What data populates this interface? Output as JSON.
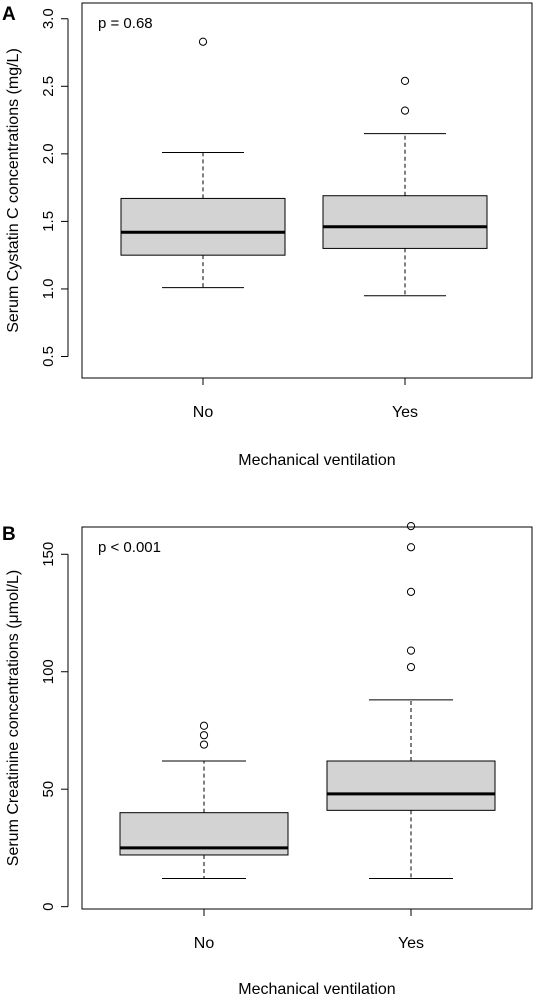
{
  "chart_data": [
    {
      "type": "boxplot",
      "panel_label": "A",
      "annotation": "p = 0.68",
      "xlabel": "Mechanical ventilation",
      "ylabel": "Serum Cystatin C concentrations (mg/L)",
      "ylim": [
        0.4,
        3.05
      ],
      "yticks": [
        "0.5",
        "1.0",
        "1.5",
        "2.0",
        "2.5",
        "3.0"
      ],
      "categories": [
        "No",
        "Yes"
      ],
      "boxes": [
        {
          "category": "No",
          "whisker_low": 1.01,
          "q1": 1.25,
          "median": 1.42,
          "q3": 1.67,
          "whisker_high": 2.01,
          "outliers": [
            2.83
          ]
        },
        {
          "category": "Yes",
          "whisker_low": 0.95,
          "q1": 1.3,
          "median": 1.46,
          "q3": 1.69,
          "whisker_high": 2.15,
          "outliers": [
            2.32,
            2.54
          ]
        }
      ]
    },
    {
      "type": "boxplot",
      "panel_label": "B",
      "annotation": "p < 0.001",
      "xlabel": "Mechanical ventilation",
      "ylabel": "Serum Creatinine concentrations (μmol/L)",
      "ylim": [
        -1,
        168
      ],
      "yticks": [
        "0",
        "50",
        "100",
        "150"
      ],
      "categories": [
        "No",
        "Yes"
      ],
      "boxes": [
        {
          "category": "No",
          "whisker_low": 12,
          "q1": 22,
          "median": 25,
          "q3": 40,
          "whisker_high": 62,
          "outliers": [
            69,
            73,
            77
          ]
        },
        {
          "category": "Yes",
          "whisker_low": 12,
          "q1": 41,
          "median": 48,
          "q3": 62,
          "whisker_high": 88,
          "outliers": [
            102,
            109,
            134,
            153,
            162
          ]
        }
      ]
    }
  ]
}
